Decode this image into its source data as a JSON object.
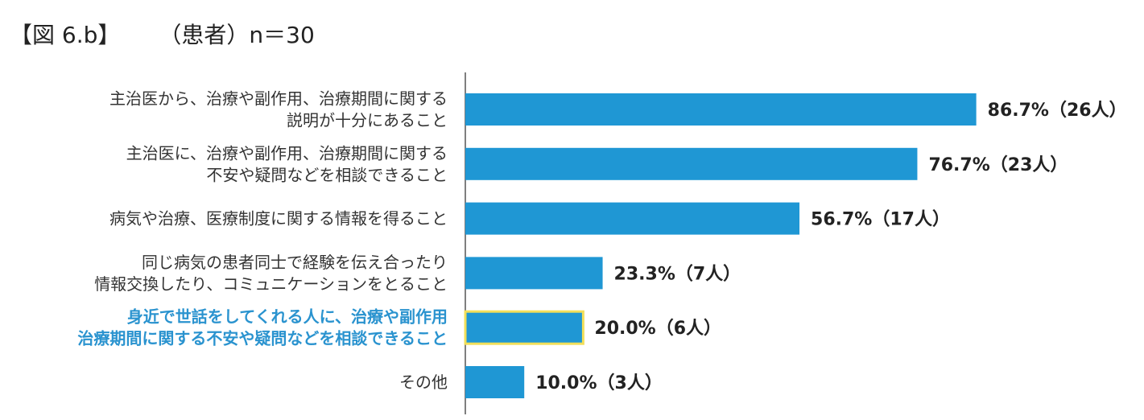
{
  "header": {
    "figure_label": "【図 6.b】",
    "subtitle": "（患者）n＝30"
  },
  "colors": {
    "bar": "#1f97d4",
    "highlight_outline": "#f2df5a",
    "highlight_text": "#2a93cf",
    "axis": "#555555"
  },
  "chart_data": {
    "type": "bar",
    "orientation": "horizontal",
    "categories": [
      [
        "主治医から、治療や副作用、治療期間に関する",
        "説明が十分にあること"
      ],
      [
        "主治医に、治療や副作用、治療期間に関する",
        "不安や疑問などを相談できること"
      ],
      [
        "病気や治療、医療制度に関する情報を得ること"
      ],
      [
        "同じ病気の患者同士で経験を伝え合ったり",
        "情報交換したり、コミュニケーションをとること"
      ],
      [
        "身近で世話をしてくれる人に、治療や副作用",
        "治療期間に関する不安や疑問などを相談できること"
      ],
      [
        "その他"
      ]
    ],
    "values": [
      86.7,
      76.7,
      56.7,
      23.3,
      20.0,
      10.0
    ],
    "counts": [
      26,
      23,
      17,
      7,
      6,
      3
    ],
    "value_labels": [
      "86.7%（26人）",
      "76.7%（23人）",
      "56.7%（17人）",
      "23.3%（7人）",
      "20.0%（6人）",
      "10.0%（3人）"
    ],
    "highlighted_index": 4,
    "xlim": [
      0,
      100
    ],
    "grid": false,
    "legend": "none"
  }
}
